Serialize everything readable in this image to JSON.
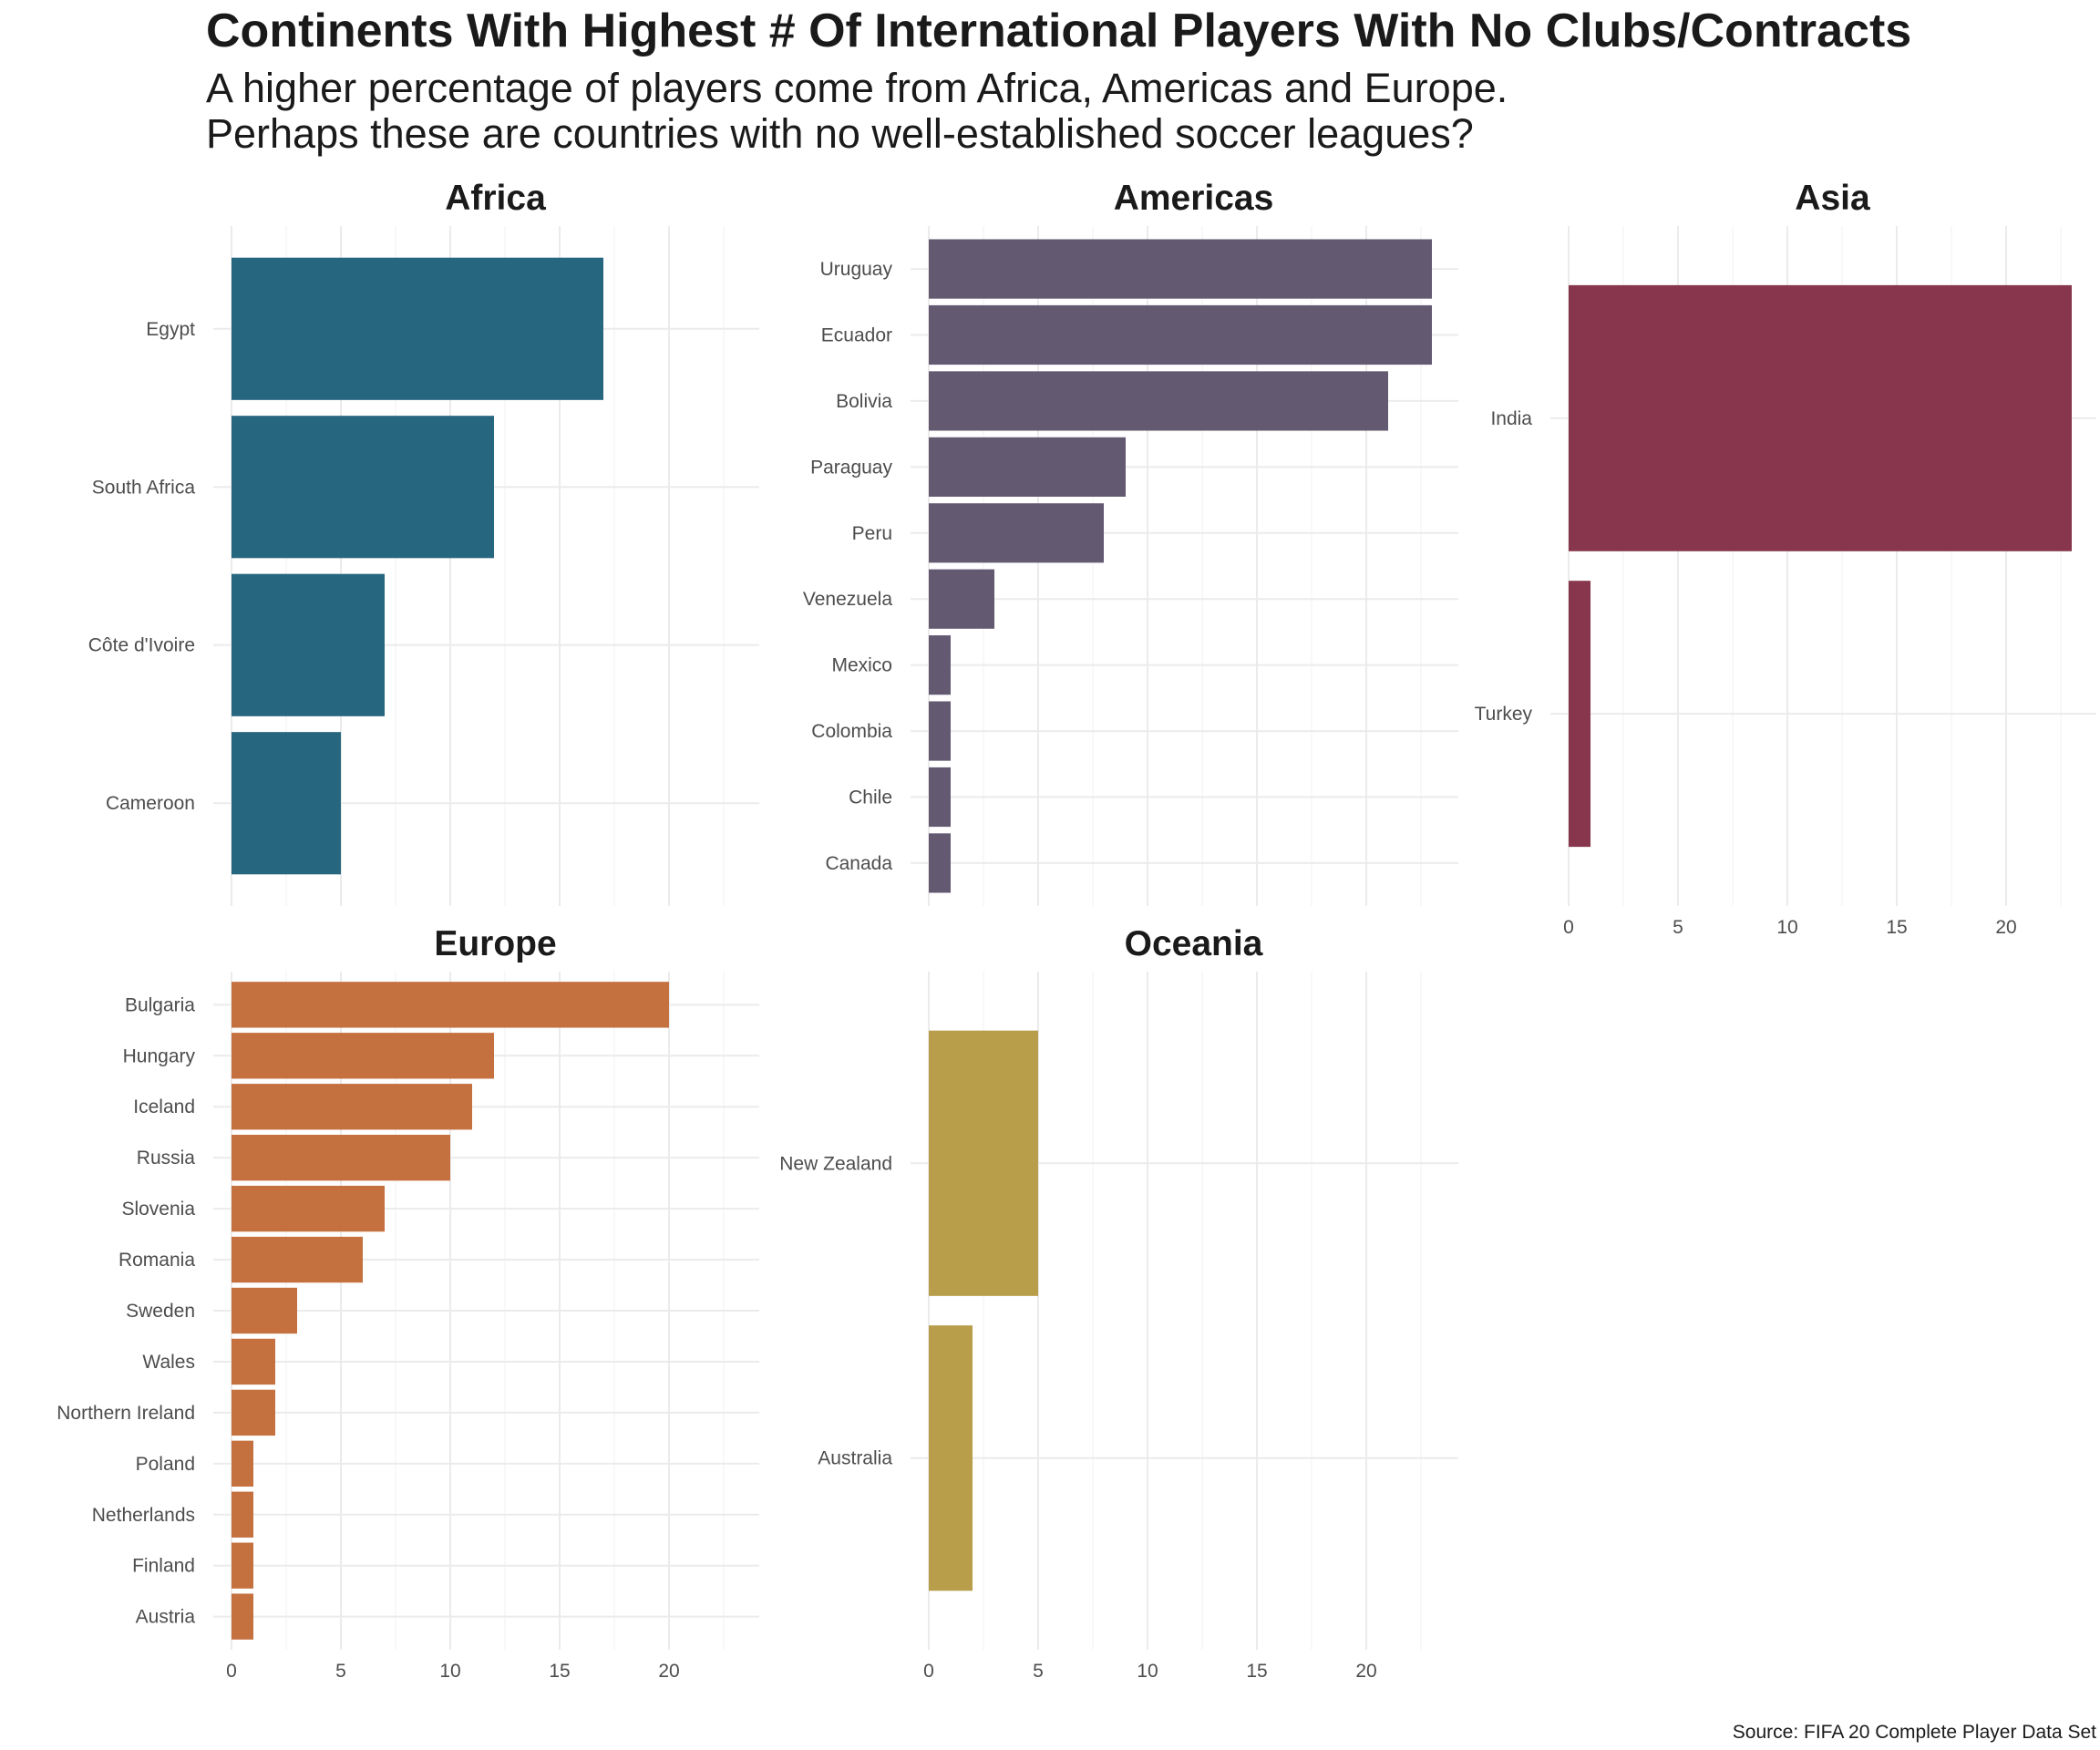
{
  "title": "Continents With Highest # Of International Players With No Clubs/Contracts",
  "subtitle": [
    "A higher percentage of players come from Africa, Americas and Europe.",
    "Perhaps these are countries with no well-established soccer leagues?"
  ],
  "caption": "Source: FIFA 20 Complete Player Data Set",
  "colors": {
    "Africa": "#27667f",
    "Americas": "#635a72",
    "Asia": "#88364e",
    "Europe": "#c4703f",
    "Oceania": "#b89d4a"
  },
  "chart_data": {
    "type": "bar",
    "orientation": "horizontal",
    "facets": [
      {
        "name": "Africa",
        "categories": [
          "Egypt",
          "South Africa",
          "Côte d'Ivoire",
          "Cameroon"
        ],
        "values": [
          17,
          12,
          7,
          5
        ]
      },
      {
        "name": "Americas",
        "categories": [
          "Uruguay",
          "Ecuador",
          "Bolivia",
          "Paraguay",
          "Peru",
          "Venezuela",
          "Mexico",
          "Colombia",
          "Chile",
          "Canada"
        ],
        "values": [
          23,
          23,
          21,
          9,
          8,
          3,
          1,
          1,
          1,
          1
        ]
      },
      {
        "name": "Asia",
        "categories": [
          "India",
          "Turkey"
        ],
        "values": [
          23,
          1
        ]
      },
      {
        "name": "Europe",
        "categories": [
          "Bulgaria",
          "Hungary",
          "Iceland",
          "Russia",
          "Slovenia",
          "Romania",
          "Sweden",
          "Wales",
          "Northern Ireland",
          "Poland",
          "Netherlands",
          "Finland",
          "Austria"
        ],
        "values": [
          20,
          12,
          11,
          10,
          7,
          6,
          3,
          2,
          2,
          1,
          1,
          1,
          1
        ]
      },
      {
        "name": "Oceania",
        "categories": [
          "New Zealand",
          "Australia"
        ],
        "values": [
          5,
          2
        ]
      }
    ],
    "x_ticks": [
      "0",
      "5",
      "10",
      "15",
      "20"
    ],
    "xlim": [
      0,
      24
    ],
    "grid": true,
    "legend": "none"
  }
}
